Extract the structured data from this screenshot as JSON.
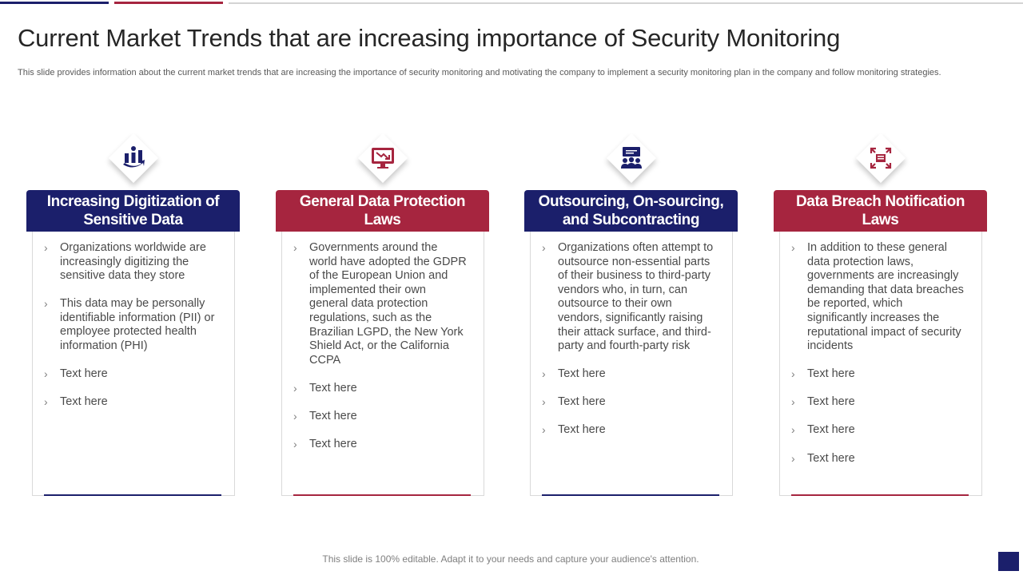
{
  "title": "Current Market Trends that are increasing importance of Security Monitoring",
  "subtitle": "This slide provides information about the current market trends that are increasing the importance of security monitoring and motivating the company to implement a security monitoring plan in the company and follow monitoring strategies.",
  "colors": {
    "navy": "#1b1f6b",
    "red": "#a6253f"
  },
  "cards": [
    {
      "icon": "digitization-chart-icon",
      "heading": "Increasing Digitization of Sensitive Data",
      "bullets": [
        "Organizations worldwide are increasingly digitizing the sensitive data they store",
        "This data may be personally identifiable information (PII) or employee protected health information (PHI)",
        "Text here",
        "Text here"
      ]
    },
    {
      "icon": "monitor-downtrend-icon",
      "heading": "General Data Protection Laws",
      "bullets": [
        "Governments around the world have adopted the GDPR of the European Union and implemented their own general data protection regulations, such as the Brazilian LGPD, the New York Shield Act, or the California CCPA",
        "Text here",
        "Text here",
        "Text here"
      ]
    },
    {
      "icon": "team-presentation-icon",
      "heading": "Outsourcing, On-sourcing, and Subcontracting",
      "bullets": [
        "Organizations often attempt to outsource non-essential parts of their business to third-party vendors who, in turn, can outsource to their own vendors, significantly raising their attack surface, and third-party and fourth-party risk",
        "Text here",
        "Text here",
        "Text here"
      ]
    },
    {
      "icon": "data-breach-icon",
      "heading": "Data Breach Notification Laws",
      "bullets": [
        "In addition to these general data protection laws, governments are increasingly demanding that data breaches be reported, which significantly increases the reputational impact of security incidents",
        "Text here",
        "Text here",
        "Text here",
        "Text here"
      ]
    }
  ],
  "footer": "This slide is 100% editable. Adapt it to your needs and capture your audience's attention."
}
